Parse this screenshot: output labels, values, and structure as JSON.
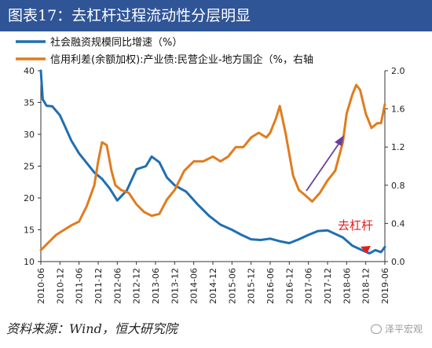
{
  "header": {
    "title": "图表17：去杠杆过程流动性分层明显"
  },
  "source": "资料来源：Wind，恒大研究院",
  "watermark": "泽平宏观",
  "chart_data": {
    "type": "line",
    "legend": [
      "社会融资规模同比增速（%）",
      "信用利差(余额加权):产业债:民营企业-地方国企（%，右轴"
    ],
    "categories": [
      "2010-06",
      "2010-12",
      "2011-06",
      "2011-12",
      "2012-06",
      "2012-12",
      "2013-06",
      "2013-12",
      "2014-06",
      "2014-12",
      "2015-06",
      "2015-12",
      "2016-06",
      "2016-12",
      "2017-06",
      "2017-12",
      "2018-06",
      "2018-12",
      "2019-06"
    ],
    "y_left": {
      "ticks": [
        10,
        15,
        20,
        25,
        30,
        35,
        40
      ],
      "min": 10,
      "max": 40
    },
    "y_right": {
      "ticks": [
        0.0,
        0.4,
        0.8,
        1.2,
        1.6,
        2.0
      ],
      "min": 0.0,
      "max": 2.0
    },
    "series": [
      {
        "name": "社会融资规模同比增速（%）",
        "axis": "left",
        "color": "#1f6fb2",
        "values": [
          [
            0,
            40.0
          ],
          [
            0.1,
            35.5
          ],
          [
            0.3,
            34.5
          ],
          [
            0.6,
            34.4
          ],
          [
            1.0,
            33.0
          ],
          [
            1.3,
            31.0
          ],
          [
            1.6,
            29.0
          ],
          [
            2.0,
            27.0
          ],
          [
            2.4,
            25.5
          ],
          [
            2.8,
            24.0
          ],
          [
            3.2,
            23.0
          ],
          [
            3.6,
            21.5
          ],
          [
            4.0,
            19.6
          ],
          [
            4.5,
            21.2
          ],
          [
            5.0,
            24.5
          ],
          [
            5.5,
            25.0
          ],
          [
            5.8,
            26.5
          ],
          [
            6.2,
            25.6
          ],
          [
            6.6,
            23.2
          ],
          [
            7.0,
            22.0
          ],
          [
            7.6,
            21.0
          ],
          [
            8.2,
            19.0
          ],
          [
            8.8,
            17.2
          ],
          [
            9.4,
            15.8
          ],
          [
            10.0,
            15.0
          ],
          [
            10.5,
            14.2
          ],
          [
            11.0,
            13.5
          ],
          [
            11.5,
            13.4
          ],
          [
            12.0,
            13.6
          ],
          [
            12.5,
            13.2
          ],
          [
            13.0,
            12.9
          ],
          [
            13.5,
            13.5
          ],
          [
            14.0,
            14.2
          ],
          [
            14.5,
            14.8
          ],
          [
            15.0,
            14.9
          ],
          [
            15.3,
            14.5
          ],
          [
            15.8,
            13.8
          ],
          [
            16.3,
            12.5
          ],
          [
            16.8,
            11.8
          ],
          [
            17.2,
            11.3
          ],
          [
            17.5,
            11.8
          ],
          [
            17.8,
            11.5
          ],
          [
            18.0,
            12.3
          ]
        ]
      },
      {
        "name": "信用利差(余额加权):产业债:民营企业-地方国企（%，右轴",
        "axis": "right",
        "color": "#e07c1e",
        "values": [
          [
            0,
            0.12
          ],
          [
            0.4,
            0.2
          ],
          [
            0.8,
            0.28
          ],
          [
            1.2,
            0.33
          ],
          [
            1.6,
            0.38
          ],
          [
            2.0,
            0.42
          ],
          [
            2.4,
            0.58
          ],
          [
            2.8,
            0.8
          ],
          [
            3.0,
            1.05
          ],
          [
            3.2,
            1.25
          ],
          [
            3.45,
            1.22
          ],
          [
            3.7,
            0.95
          ],
          [
            3.9,
            0.8
          ],
          [
            4.2,
            0.75
          ],
          [
            4.6,
            0.72
          ],
          [
            5.0,
            0.6
          ],
          [
            5.4,
            0.52
          ],
          [
            5.8,
            0.48
          ],
          [
            6.2,
            0.5
          ],
          [
            6.6,
            0.65
          ],
          [
            7.0,
            0.75
          ],
          [
            7.5,
            0.95
          ],
          [
            8.0,
            1.05
          ],
          [
            8.5,
            1.05
          ],
          [
            9.0,
            1.1
          ],
          [
            9.4,
            1.05
          ],
          [
            9.8,
            1.1
          ],
          [
            10.2,
            1.2
          ],
          [
            10.6,
            1.2
          ],
          [
            11.0,
            1.3
          ],
          [
            11.4,
            1.35
          ],
          [
            11.8,
            1.3
          ],
          [
            12.0,
            1.35
          ],
          [
            12.3,
            1.5
          ],
          [
            12.5,
            1.63
          ],
          [
            12.8,
            1.35
          ],
          [
            13.2,
            0.9
          ],
          [
            13.5,
            0.75
          ],
          [
            13.8,
            0.7
          ],
          [
            14.2,
            0.63
          ],
          [
            14.6,
            0.72
          ],
          [
            15.0,
            0.85
          ],
          [
            15.4,
            0.95
          ],
          [
            15.8,
            1.25
          ],
          [
            16.0,
            1.55
          ],
          [
            16.3,
            1.75
          ],
          [
            16.5,
            1.85
          ],
          [
            16.7,
            1.8
          ],
          [
            17.0,
            1.55
          ],
          [
            17.3,
            1.4
          ],
          [
            17.6,
            1.45
          ],
          [
            17.8,
            1.45
          ],
          [
            18.0,
            1.65
          ]
        ]
      }
    ],
    "annotations": [
      {
        "text": "去杠杆"
      }
    ]
  }
}
